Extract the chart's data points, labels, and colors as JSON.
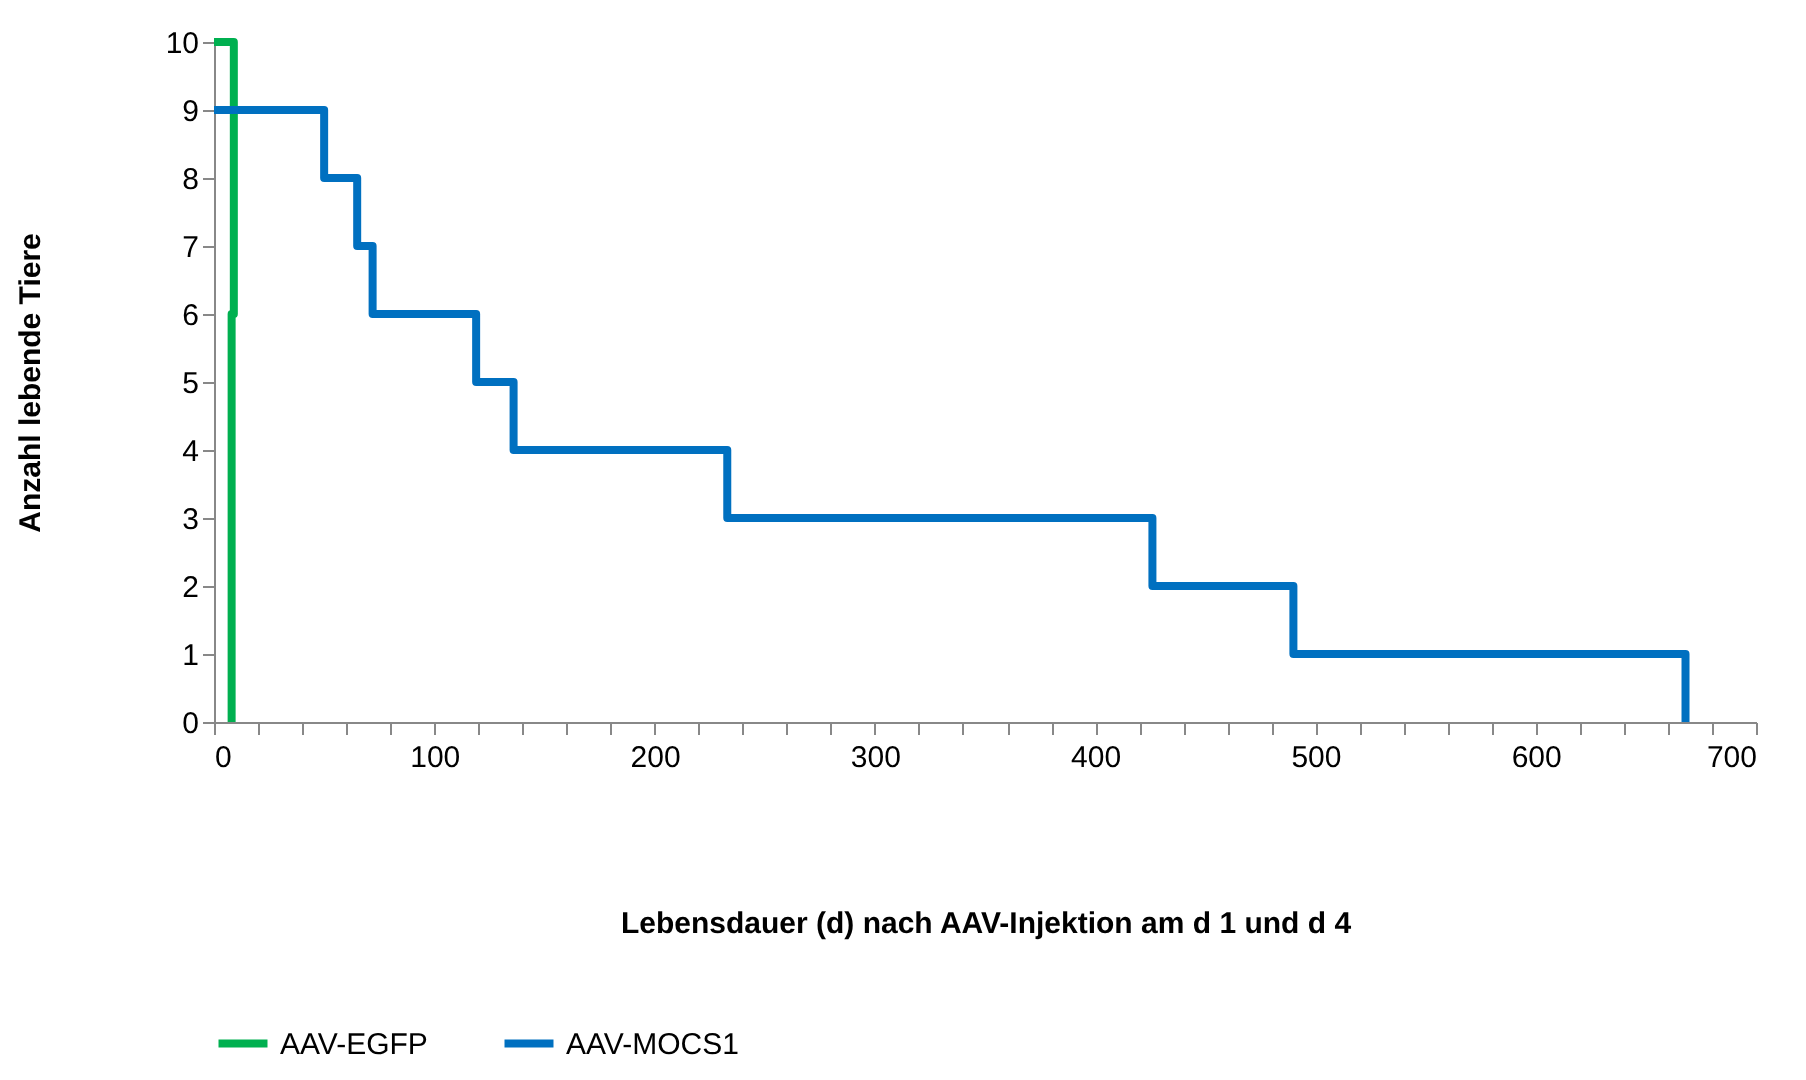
{
  "chart_data": {
    "type": "step",
    "xlabel": "Lebensdauer (d) nach AAV-Injektion am d 1 und d 4",
    "ylabel": "Anzahl lebende Tiere",
    "series": [
      {
        "name": "AAV-EGFP",
        "color": "#00b050",
        "x": [
          0,
          9,
          8
        ],
        "values": [
          10,
          6,
          0
        ]
      },
      {
        "name": "AAV-MOCS1",
        "color": "#0070c0",
        "x": [
          0,
          50,
          65,
          72,
          119,
          136,
          233,
          426,
          490,
          668,
          668
        ],
        "values": [
          9,
          8,
          7,
          6,
          5,
          4,
          3,
          2,
          1,
          1,
          0
        ]
      }
    ],
    "xlim": [
      0,
      700
    ],
    "ylim": [
      0,
      10
    ],
    "xticks": [
      0,
      {
        "value": 20,
        "label": null
      },
      {
        "value": 40,
        "label": null
      },
      {
        "value": 60,
        "label": null
      },
      {
        "value": 80,
        "label": null
      },
      100,
      {
        "value": 120,
        "label": null
      },
      {
        "value": 140,
        "label": null
      },
      {
        "value": 160,
        "label": null
      },
      {
        "value": 180,
        "label": null
      },
      200,
      {
        "value": 220,
        "label": null
      },
      {
        "value": 240,
        "label": null
      },
      {
        "value": 260,
        "label": null
      },
      {
        "value": 280,
        "label": null
      },
      300,
      {
        "value": 320,
        "label": null
      },
      {
        "value": 340,
        "label": null
      },
      {
        "value": 360,
        "label": null
      },
      {
        "value": 380,
        "label": null
      },
      400,
      {
        "value": 420,
        "label": null
      },
      {
        "value": 440,
        "label": null
      },
      {
        "value": 460,
        "label": null
      },
      {
        "value": 480,
        "label": null
      },
      500,
      {
        "value": 520,
        "label": null
      },
      {
        "value": 540,
        "label": null
      },
      {
        "value": 560,
        "label": null
      },
      {
        "value": 580,
        "label": null
      },
      600,
      {
        "value": 620,
        "label": null
      },
      {
        "value": 640,
        "label": null
      },
      {
        "value": 660,
        "label": null
      },
      {
        "value": 680,
        "label": null
      },
      700
    ],
    "yticks": [
      0,
      1,
      2,
      3,
      4,
      5,
      6,
      7,
      8,
      9,
      10
    ],
    "grid": false,
    "legend": "bottom",
    "marker": "none",
    "line_style": "solid"
  }
}
